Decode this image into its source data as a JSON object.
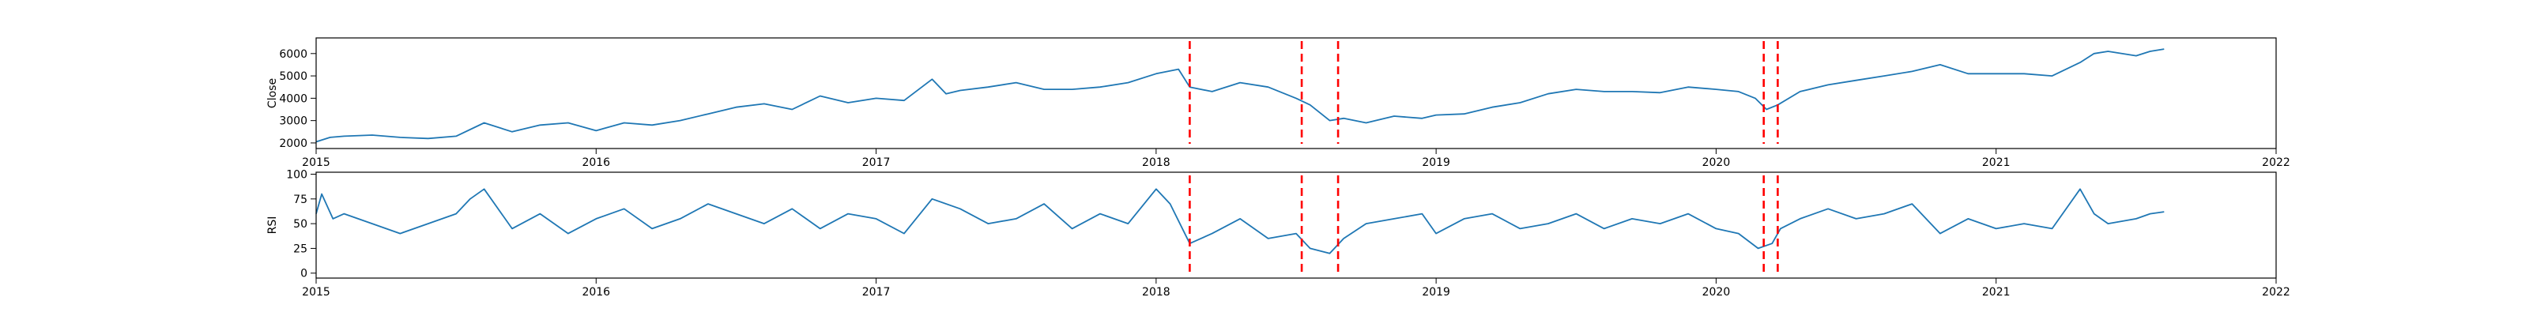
{
  "chart_data": [
    {
      "type": "line",
      "ylabel": "Close",
      "xlim": [
        2015,
        2022
      ],
      "ylim": [
        1750,
        6700
      ],
      "x_ticks": [
        2015,
        2016,
        2017,
        2018,
        2019,
        2020,
        2021,
        2022
      ],
      "x_tick_labels": [
        "2015",
        "2016",
        "2017",
        "2018",
        "2019",
        "2020",
        "2021",
        "2022"
      ],
      "y_ticks": [
        2000,
        3000,
        4000,
        5000,
        6000
      ],
      "y_tick_labels": [
        "2000",
        "3000",
        "4000",
        "5000",
        "6000"
      ],
      "grid": false,
      "line_color": "#1f77b4",
      "event_color": "#ff0000",
      "series": [
        {
          "x": [
            2015.0,
            2015.05,
            2015.1,
            2015.2,
            2015.3,
            2015.4,
            2015.5,
            2015.6,
            2015.7,
            2015.8,
            2015.9,
            2016.0,
            2016.1,
            2016.2,
            2016.3,
            2016.4,
            2016.5,
            2016.6,
            2016.7,
            2016.8,
            2016.9,
            2017.0,
            2017.1,
            2017.2,
            2017.25,
            2017.3,
            2017.4,
            2017.5,
            2017.6,
            2017.7,
            2017.8,
            2017.9,
            2018.0,
            2018.08,
            2018.12,
            2018.2,
            2018.3,
            2018.4,
            2018.5,
            2018.55,
            2018.62,
            2018.67,
            2018.75,
            2018.85,
            2018.95,
            2019.0,
            2019.1,
            2019.2,
            2019.3,
            2019.4,
            2019.5,
            2019.6,
            2019.7,
            2019.8,
            2019.9,
            2020.0,
            2020.08,
            2020.14,
            2020.18,
            2020.22,
            2020.3,
            2020.4,
            2020.5,
            2020.6,
            2020.7,
            2020.8,
            2020.9,
            2021.0,
            2021.1,
            2021.2,
            2021.3,
            2021.35,
            2021.4,
            2021.5,
            2021.55,
            2021.6
          ],
          "y": [
            2050,
            2250,
            2300,
            2350,
            2250,
            2200,
            2300,
            2900,
            2500,
            2800,
            2900,
            2550,
            2900,
            2800,
            3000,
            3300,
            3600,
            3750,
            3500,
            4100,
            3800,
            4000,
            3900,
            4850,
            4200,
            4350,
            4500,
            4700,
            4400,
            4400,
            4500,
            4700,
            5100,
            5300,
            4500,
            4300,
            4700,
            4500,
            4000,
            3700,
            3000,
            3100,
            2900,
            3200,
            3100,
            3250,
            3300,
            3600,
            3800,
            4200,
            4400,
            4300,
            4300,
            4250,
            4500,
            4400,
            4300,
            4000,
            3500,
            3700,
            4300,
            4600,
            4800,
            5000,
            5200,
            5500,
            5100,
            5100,
            5100,
            5000,
            5600,
            6000,
            6100,
            5900,
            6100,
            6200
          ],
          "events": [
            2018.12,
            2018.52,
            2018.65,
            2020.17,
            2020.22
          ]
        }
      ]
    },
    {
      "type": "line",
      "ylabel": "RSI",
      "xlim": [
        2015,
        2022
      ],
      "ylim": [
        -5,
        102
      ],
      "x_ticks": [
        2015,
        2016,
        2017,
        2018,
        2019,
        2020,
        2021,
        2022
      ],
      "x_tick_labels": [
        "2015",
        "2016",
        "2017",
        "2018",
        "2019",
        "2020",
        "2021",
        "2022"
      ],
      "y_ticks": [
        0,
        25,
        50,
        75,
        100
      ],
      "y_tick_labels": [
        "0",
        "25",
        "50",
        "75",
        "100"
      ],
      "grid": false,
      "line_color": "#1f77b4",
      "event_color": "#ff0000",
      "series": [
        {
          "x": [
            2015.0,
            2015.02,
            2015.06,
            2015.1,
            2015.2,
            2015.3,
            2015.4,
            2015.5,
            2015.55,
            2015.6,
            2015.7,
            2015.8,
            2015.9,
            2016.0,
            2016.1,
            2016.2,
            2016.3,
            2016.4,
            2016.5,
            2016.6,
            2016.7,
            2016.8,
            2016.9,
            2017.0,
            2017.1,
            2017.2,
            2017.3,
            2017.4,
            2017.5,
            2017.6,
            2017.7,
            2017.8,
            2017.9,
            2018.0,
            2018.05,
            2018.12,
            2018.2,
            2018.3,
            2018.4,
            2018.5,
            2018.55,
            2018.62,
            2018.67,
            2018.75,
            2018.85,
            2018.95,
            2019.0,
            2019.1,
            2019.2,
            2019.3,
            2019.4,
            2019.5,
            2019.6,
            2019.7,
            2019.8,
            2019.9,
            2020.0,
            2020.08,
            2020.15,
            2020.2,
            2020.23,
            2020.3,
            2020.4,
            2020.5,
            2020.6,
            2020.7,
            2020.8,
            2020.9,
            2021.0,
            2021.1,
            2021.2,
            2021.3,
            2021.35,
            2021.4,
            2021.5,
            2021.55,
            2021.6
          ],
          "y": [
            60,
            80,
            55,
            60,
            50,
            40,
            50,
            60,
            75,
            85,
            45,
            60,
            40,
            55,
            65,
            45,
            55,
            70,
            60,
            50,
            65,
            45,
            60,
            55,
            40,
            75,
            65,
            50,
            55,
            70,
            45,
            60,
            50,
            85,
            70,
            30,
            40,
            55,
            35,
            40,
            25,
            20,
            35,
            50,
            55,
            60,
            40,
            55,
            60,
            45,
            50,
            60,
            45,
            55,
            50,
            60,
            45,
            40,
            25,
            30,
            45,
            55,
            65,
            55,
            60,
            70,
            40,
            55,
            45,
            50,
            45,
            85,
            60,
            50,
            55,
            60,
            62
          ],
          "events": [
            2018.12,
            2018.52,
            2018.65,
            2020.17,
            2020.22
          ]
        }
      ]
    }
  ]
}
